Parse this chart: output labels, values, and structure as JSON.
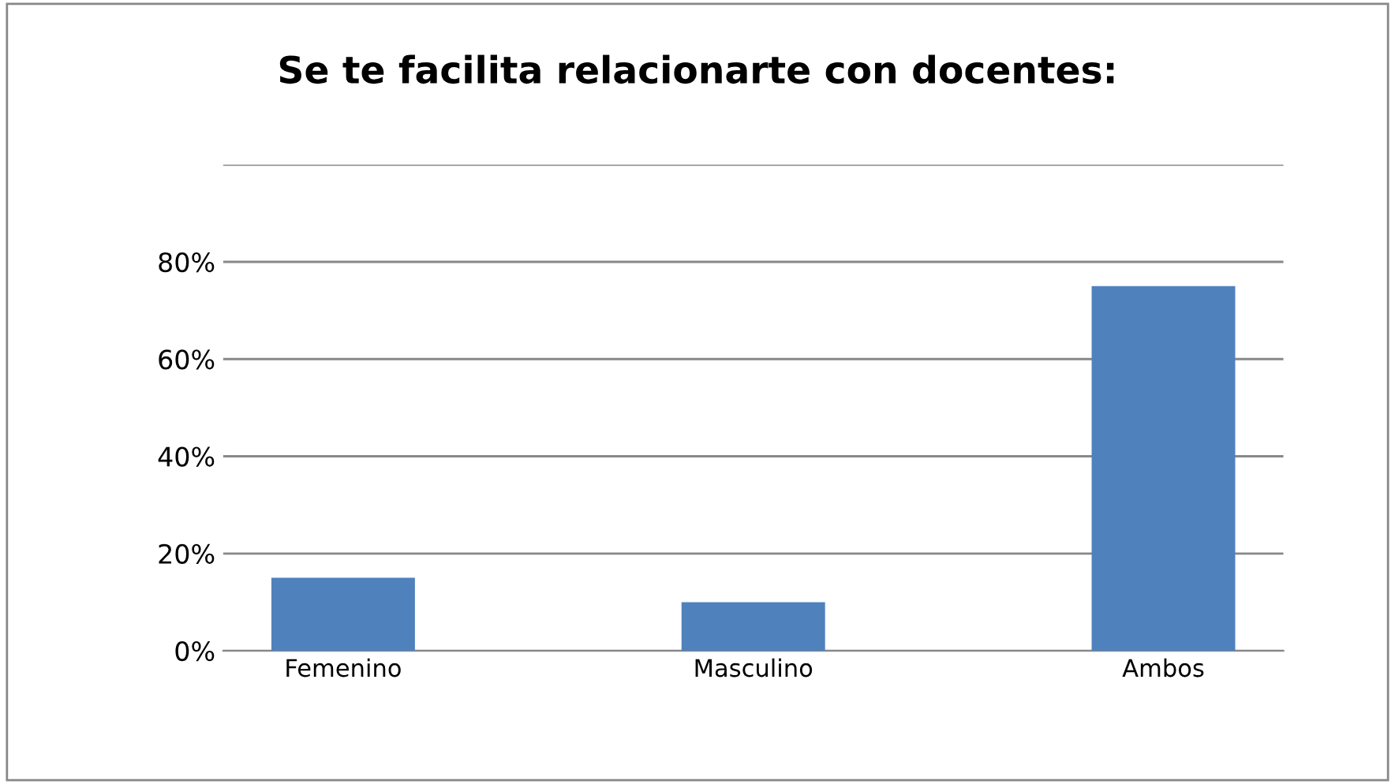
{
  "chart_data": {
    "type": "bar",
    "title": "Se te facilita relacionarte con docentes:",
    "categories": [
      "Femenino",
      "Masculino",
      "Ambos"
    ],
    "values": [
      15,
      10,
      75
    ],
    "color": "#4f81bd",
    "ylim": [
      0,
      100
    ],
    "yticks": [
      {
        "value": 0,
        "label": "0%"
      },
      {
        "value": 20,
        "label": "20%"
      },
      {
        "value": 40,
        "label": "40%"
      },
      {
        "value": 60,
        "label": "60%"
      },
      {
        "value": 80,
        "label": "80%"
      },
      {
        "value": 100,
        "label": null
      }
    ],
    "grid": "y"
  }
}
